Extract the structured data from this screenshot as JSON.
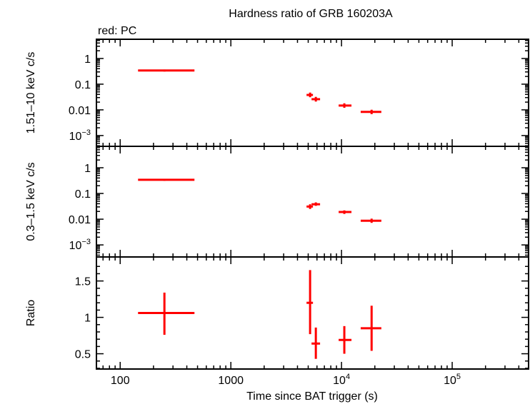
{
  "chart_data": {
    "type": "scatter",
    "title": "Hardness ratio of GRB 160203A",
    "subtitle": "red: PC",
    "xlabel": "Time since BAT trigger (s)",
    "xscale": "log",
    "xlim": [
      61,
      490000
    ],
    "x_ticks": [
      {
        "v": 100,
        "label": "100"
      },
      {
        "v": 1000,
        "label": "1000"
      },
      {
        "v": 10000,
        "label": "10",
        "sup": "4"
      },
      {
        "v": 100000,
        "label": "10",
        "sup": "5"
      }
    ],
    "color": "#ff0000",
    "panels": [
      {
        "ylabel": "1.51–10 keV c/s",
        "yscale": "log",
        "ylim": [
          0.00038,
          5.6
        ],
        "y_ticks": [
          {
            "v": 1,
            "label": "1"
          },
          {
            "v": 0.1,
            "label": "0.1"
          },
          {
            "v": 0.01,
            "label": "0.01"
          },
          {
            "v": 0.001,
            "label": "10",
            "sup": "−3"
          }
        ],
        "points": [
          {
            "x": 251,
            "xlo": 145,
            "xhi": 469,
            "y": 0.34,
            "ylo": 0.31,
            "yhi": 0.37
          },
          {
            "x": 5200,
            "xlo": 4830,
            "xhi": 5520,
            "y": 0.038,
            "ylo": 0.031,
            "yhi": 0.047
          },
          {
            "x": 5860,
            "xlo": 5360,
            "xhi": 6400,
            "y": 0.026,
            "ylo": 0.021,
            "yhi": 0.032
          },
          {
            "x": 10600,
            "xlo": 9420,
            "xhi": 12300,
            "y": 0.0147,
            "ylo": 0.012,
            "yhi": 0.018
          },
          {
            "x": 18700,
            "xlo": 14900,
            "xhi": 22900,
            "y": 0.0083,
            "ylo": 0.0068,
            "yhi": 0.0101
          }
        ]
      },
      {
        "ylabel": "0.3–1.5 keV c/s",
        "yscale": "log",
        "ylim": [
          0.00034,
          6.8
        ],
        "y_ticks": [
          {
            "v": 1,
            "label": "1"
          },
          {
            "v": 0.1,
            "label": "0.1"
          },
          {
            "v": 0.01,
            "label": "0.01"
          },
          {
            "v": 0.001,
            "label": "10",
            "sup": "−3"
          }
        ],
        "points": [
          {
            "x": 251,
            "xlo": 145,
            "xhi": 469,
            "y": 0.34,
            "ylo": 0.31,
            "yhi": 0.37
          },
          {
            "x": 5200,
            "xlo": 4830,
            "xhi": 5520,
            "y": 0.031,
            "ylo": 0.025,
            "yhi": 0.038
          },
          {
            "x": 5860,
            "xlo": 5360,
            "xhi": 6400,
            "y": 0.038,
            "ylo": 0.033,
            "yhi": 0.045
          },
          {
            "x": 10600,
            "xlo": 9420,
            "xhi": 12300,
            "y": 0.019,
            "ylo": 0.016,
            "yhi": 0.022
          },
          {
            "x": 18700,
            "xlo": 14900,
            "xhi": 22900,
            "y": 0.0087,
            "ylo": 0.0072,
            "yhi": 0.0105
          }
        ]
      },
      {
        "ylabel": "Ratio",
        "yscale": "linear",
        "ylim": [
          0.29,
          1.83
        ],
        "y_ticks": [
          {
            "v": 1.5,
            "label": "1.5"
          },
          {
            "v": 1,
            "label": "1"
          },
          {
            "v": 0.5,
            "label": "0.5"
          }
        ],
        "points": [
          {
            "x": 251,
            "xlo": 145,
            "xhi": 469,
            "y": 1.06,
            "ylo": 0.76,
            "yhi": 1.34
          },
          {
            "x": 5200,
            "xlo": 4830,
            "xhi": 5520,
            "y": 1.2,
            "ylo": 0.77,
            "yhi": 1.65
          },
          {
            "x": 5860,
            "xlo": 5360,
            "xhi": 6400,
            "y": 0.64,
            "ylo": 0.43,
            "yhi": 0.86
          },
          {
            "x": 10600,
            "xlo": 9420,
            "xhi": 12300,
            "y": 0.69,
            "ylo": 0.5,
            "yhi": 0.88
          },
          {
            "x": 18700,
            "xlo": 14900,
            "xhi": 22900,
            "y": 0.85,
            "ylo": 0.54,
            "yhi": 1.16
          }
        ]
      }
    ]
  }
}
